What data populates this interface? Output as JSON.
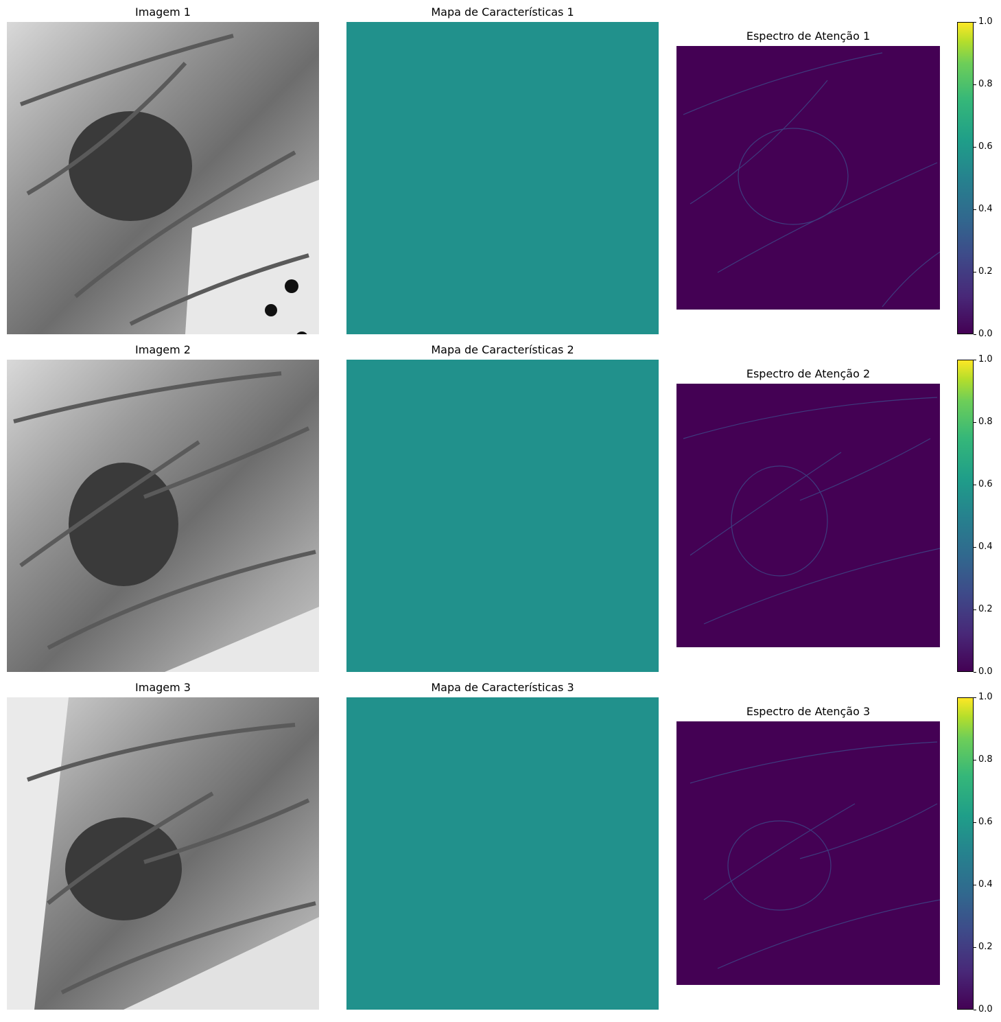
{
  "rows": [
    {
      "image_title": "Imagem 1",
      "feature_title": "Mapa de Características 1",
      "attention_title": "Espectro de Atenção 1"
    },
    {
      "image_title": "Imagem 2",
      "feature_title": "Mapa de Características 2",
      "attention_title": "Espectro de Atenção 2"
    },
    {
      "image_title": "Imagem 3",
      "feature_title": "Mapa de Características 3",
      "attention_title": "Espectro de Atenção 3"
    }
  ],
  "colorbar": {
    "colormap": "viridis",
    "ticks": [
      "0.0",
      "0.2",
      "0.4",
      "0.6",
      "0.8",
      "1.0"
    ]
  },
  "colors": {
    "feature_map_fill": "#21918c",
    "attention_background": "#440154",
    "attention_edges": "#3e4a89"
  }
}
